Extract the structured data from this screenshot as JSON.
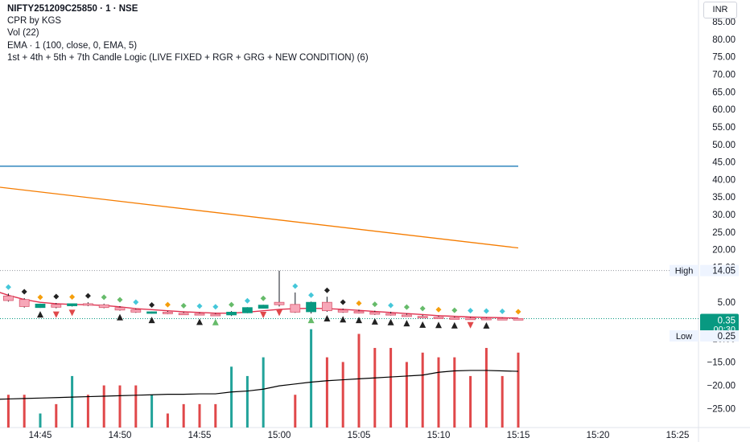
{
  "legend": {
    "symbol": "NIFTY251209C25850 · 1 · NSE",
    "lines": [
      "CPR by KGS",
      "Vol (22)",
      "EMA · 1 (100, close, 0, EMA, 5)",
      "1st + 4th + 5th + 7th Candle Logic (LIVE FIXED + RGR + GRG + NEW CONDITION) (6)"
    ]
  },
  "currency": "INR",
  "price_axis": {
    "ticks": [
      "85.00",
      "80.00",
      "75.00",
      "70.00",
      "65.00",
      "60.00",
      "55.00",
      "50.00",
      "45.00",
      "40.00",
      "35.00",
      "30.00",
      "25.00",
      "20.00",
      "15.00",
      "5.00"
    ],
    "volume_ticks": [
      "−10.00",
      "−15.00",
      "−20.00",
      "−25.00"
    ]
  },
  "tags": {
    "high_label": "High",
    "high_value": "14.05",
    "last_value": "0.35",
    "countdown": "00:30",
    "low_label": "Low",
    "low_value": "0.25"
  },
  "time_axis": [
    "14:45",
    "14:50",
    "14:55",
    "15:00",
    "15:05",
    "15:10",
    "15:15",
    "15:20",
    "15:25"
  ],
  "colors": {
    "bull": "#089981",
    "bear": "#f7a7b8",
    "bear_vol": "#e0484a",
    "bull_vol": "#22a39a",
    "ema": "#e0314f",
    "cpr": "#2962ff",
    "orange": "#f57c00",
    "tag": "#089981"
  },
  "chart_data": {
    "type": "candlestick",
    "y_range": [
      0,
      85
    ],
    "x_range_minutes": [
      "14:42",
      "15:27"
    ],
    "hlines": [
      {
        "value": 43.8,
        "color": "#1e7bb8"
      }
    ],
    "trend_line": {
      "from": {
        "t": "14:42",
        "v": 37.8
      },
      "to": {
        "t": "15:15",
        "v": 20.5
      }
    },
    "candles": [
      {
        "t": "14:42",
        "o": 10.5,
        "h": 12.0,
        "c": 6.5,
        "l": 6.0
      },
      {
        "t": "14:43",
        "o": 6.8,
        "h": 7.5,
        "c": 5.5,
        "l": 5.2
      },
      {
        "t": "14:44",
        "o": 5.8,
        "h": 6.2,
        "c": 3.8,
        "l": 3.5
      },
      {
        "t": "14:45",
        "o": 3.5,
        "h": 4.6,
        "c": 4.5,
        "l": 3.4
      },
      {
        "t": "14:46",
        "o": 4.4,
        "h": 4.8,
        "c": 3.6,
        "l": 3.3
      },
      {
        "t": "14:47",
        "o": 4.0,
        "h": 4.7,
        "c": 4.6,
        "l": 3.8
      },
      {
        "t": "14:48",
        "o": 4.6,
        "h": 5.0,
        "c": 4.2,
        "l": 3.9
      },
      {
        "t": "14:49",
        "o": 4.3,
        "h": 4.6,
        "c": 3.5,
        "l": 3.3
      },
      {
        "t": "14:50",
        "o": 3.5,
        "h": 3.9,
        "c": 2.8,
        "l": 2.6
      },
      {
        "t": "14:51",
        "o": 2.9,
        "h": 3.2,
        "c": 2.2,
        "l": 2.0
      },
      {
        "t": "14:52",
        "o": 2.0,
        "h": 2.4,
        "c": 2.3,
        "l": 1.8
      },
      {
        "t": "14:53",
        "o": 2.2,
        "h": 2.5,
        "c": 1.8,
        "l": 1.6
      },
      {
        "t": "14:54",
        "o": 1.9,
        "h": 2.2,
        "c": 1.7,
        "l": 1.5
      },
      {
        "t": "14:55",
        "o": 1.8,
        "h": 2.1,
        "c": 1.5,
        "l": 1.3
      },
      {
        "t": "14:56",
        "o": 1.6,
        "h": 1.9,
        "c": 1.4,
        "l": 1.2
      },
      {
        "t": "14:57",
        "o": 1.4,
        "h": 2.5,
        "c": 2.2,
        "l": 1.1
      },
      {
        "t": "14:58",
        "o": 2.0,
        "h": 3.6,
        "c": 3.5,
        "l": 1.9
      },
      {
        "t": "14:59",
        "o": 3.3,
        "h": 4.3,
        "c": 4.2,
        "l": 3.2
      },
      {
        "t": "15:00",
        "o": 5.0,
        "h": 14.0,
        "c": 4.3,
        "l": 3.8
      },
      {
        "t": "15:01",
        "o": 4.4,
        "h": 7.8,
        "c": 2.2,
        "l": 2.0
      },
      {
        "t": "15:02",
        "o": 2.3,
        "h": 5.2,
        "c": 5.0,
        "l": 1.8
      },
      {
        "t": "15:03",
        "o": 5.0,
        "h": 6.6,
        "c": 2.6,
        "l": 2.3
      },
      {
        "t": "15:04",
        "o": 2.8,
        "h": 3.2,
        "c": 2.2,
        "l": 2.0
      },
      {
        "t": "15:05",
        "o": 2.4,
        "h": 2.9,
        "c": 2.0,
        "l": 1.8
      },
      {
        "t": "15:06",
        "o": 2.2,
        "h": 2.6,
        "c": 1.6,
        "l": 1.4
      },
      {
        "t": "15:07",
        "o": 1.8,
        "h": 2.3,
        "c": 1.4,
        "l": 1.2
      },
      {
        "t": "15:08",
        "o": 1.4,
        "h": 1.8,
        "c": 1.0,
        "l": 0.9
      },
      {
        "t": "15:09",
        "o": 1.0,
        "h": 1.4,
        "c": 0.7,
        "l": 0.5
      },
      {
        "t": "15:10",
        "o": 0.8,
        "h": 1.1,
        "c": 0.5,
        "l": 0.4
      },
      {
        "t": "15:11",
        "o": 0.6,
        "h": 0.9,
        "c": 0.45,
        "l": 0.3
      },
      {
        "t": "15:12",
        "o": 0.5,
        "h": 0.8,
        "c": 0.4,
        "l": 0.3
      },
      {
        "t": "15:13",
        "o": 0.45,
        "h": 0.7,
        "c": 0.38,
        "l": 0.25
      },
      {
        "t": "15:14",
        "o": 0.4,
        "h": 0.6,
        "c": 0.36,
        "l": 0.25
      },
      {
        "t": "15:15",
        "o": 0.38,
        "h": 0.5,
        "c": 0.35,
        "l": 0.25
      }
    ],
    "ema": [
      8.5,
      7.0,
      5.8,
      5.0,
      4.6,
      4.4,
      4.3,
      4.1,
      3.7,
      3.2,
      2.9,
      2.6,
      2.3,
      2.1,
      1.9,
      1.9,
      2.2,
      2.6,
      3.0,
      3.2,
      3.3,
      3.2,
      3.0,
      2.7,
      2.4,
      2.1,
      1.8,
      1.5,
      1.2,
      1.0,
      0.8,
      0.7,
      0.6,
      0.5
    ],
    "volume": [
      30,
      22,
      22,
      26,
      24,
      18,
      22,
      20,
      20,
      20,
      22,
      26,
      24,
      24,
      24,
      16,
      18,
      14,
      40,
      22,
      8,
      14,
      15,
      9,
      12,
      12,
      15,
      13,
      14,
      14,
      18,
      12,
      18,
      13
    ],
    "volume_ma": [
      23,
      22.9,
      22.8,
      22.7,
      22.6,
      22.5,
      22.4,
      22.3,
      22.2,
      22.1,
      22,
      21.9,
      21.9,
      21.8,
      21.8,
      21.4,
      21.2,
      20.8,
      20.1,
      19.7,
      19.3,
      19.0,
      18.8,
      18.6,
      18.4,
      18.2,
      18.0,
      17.8,
      17.2,
      16.9,
      16.8,
      16.8,
      16.9,
      17.0
    ],
    "volume_range": [
      -29,
      -6
    ]
  }
}
